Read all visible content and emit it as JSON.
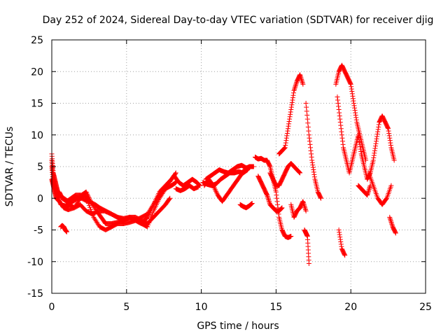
{
  "chart_data": {
    "type": "scatter",
    "title": "Day 252 of 2024, Sidereal Day-to-day VTEC variation (SDTVAR) for receiver djig",
    "xlabel": "GPS time / hours",
    "ylabel": "SDTVAR / TECUs",
    "xlim": [
      0,
      25
    ],
    "ylim": [
      -15,
      25
    ],
    "x_ticks": [
      0,
      5,
      10,
      15,
      20,
      25
    ],
    "y_ticks": [
      -15,
      -10,
      -5,
      0,
      5,
      10,
      15,
      20,
      25
    ],
    "x_tick_labels": [
      "0",
      "5",
      "10",
      "15",
      "20",
      "25"
    ],
    "y_tick_labels": [
      "-15",
      "-10",
      "-5",
      "0",
      "5",
      "10",
      "15",
      "20",
      "25"
    ],
    "grid": true,
    "marker": "+",
    "color": "#ff0000",
    "series": [
      {
        "name": "t0",
        "x": [
          0.0,
          0.1,
          0.2,
          0.3,
          0.4,
          0.5,
          0.7,
          1.0,
          1.3,
          1.6,
          2.0,
          2.3,
          2.6,
          3.0,
          3.3,
          3.6,
          4.0,
          4.4,
          4.8,
          5.2,
          5.6,
          6.0,
          6.4,
          6.8,
          7.2,
          7.6,
          7.9
        ],
        "y": [
          7,
          4,
          3,
          2,
          1,
          1,
          0,
          -0.5,
          0,
          0.5,
          0.5,
          1,
          -0.5,
          -2,
          -3,
          -4,
          -4,
          -3.8,
          -3.5,
          -3,
          -3,
          -3.5,
          -4,
          -3,
          -2,
          -1,
          0
        ]
      },
      {
        "name": "t1",
        "x": [
          0.0,
          0.1,
          0.2,
          0.3,
          0.5,
          0.8,
          1.1,
          1.4,
          1.7,
          2.0,
          2.4,
          2.8,
          3.2,
          3.6,
          4.0,
          4.4,
          4.8,
          5.2,
          5.6,
          6.0,
          6.4,
          6.8,
          7.2,
          7.6,
          8.0
        ],
        "y": [
          6,
          3,
          2,
          1,
          0.5,
          0,
          -0.5,
          -0.5,
          0,
          0,
          -0.5,
          -3,
          -4.5,
          -5,
          -4.5,
          -4,
          -4,
          -3.8,
          -3.5,
          -4,
          -4.5,
          -2,
          0,
          1.5,
          3
        ]
      },
      {
        "name": "t2",
        "x": [
          0.0,
          0.1,
          0.2,
          0.4,
          0.6,
          0.9,
          1.2,
          1.5,
          1.9,
          2.2,
          2.5,
          2.9,
          3.2,
          3.6,
          4.0,
          4.4,
          4.8,
          5.2,
          5.6,
          6.0,
          6.4,
          6.8,
          7.2,
          7.6,
          8.0,
          8.3
        ],
        "y": [
          5,
          2.5,
          1.5,
          0.5,
          -1,
          -1.2,
          -1,
          -1.5,
          0,
          0.5,
          -0.5,
          -1,
          -1.5,
          -2,
          -2.5,
          -3,
          -3.2,
          -3,
          -3.5,
          -4,
          -3,
          -1,
          1,
          2,
          3,
          4
        ]
      },
      {
        "name": "t3",
        "x": [
          0.0,
          0.1,
          0.2,
          0.3,
          0.5,
          0.8,
          1.1,
          1.5,
          1.9,
          2.3,
          2.7,
          3.1,
          3.5,
          4.0,
          4.4,
          4.8,
          5.2,
          5.6,
          6.0,
          6.4,
          6.8,
          7.2,
          7.6,
          8.0,
          8.3
        ],
        "y": [
          3,
          2,
          1,
          0,
          -0.5,
          -1.5,
          -1.8,
          -1.5,
          -1,
          -2,
          -2.5,
          -2,
          -2,
          -2.5,
          -3,
          -3.5,
          -3,
          -3.5,
          -3,
          -2.5,
          -1,
          0.5,
          1.5,
          2,
          2.5
        ]
      },
      {
        "name": "t4",
        "x": [
          0.6,
          0.7,
          0.8,
          0.9,
          1.0
        ],
        "y": [
          -4.5,
          -4.3,
          -4.5,
          -5,
          -5.3
        ]
      },
      {
        "name": "t5",
        "x": [
          8.2,
          8.5,
          8.8,
          9.1,
          9.4,
          9.7,
          9.9
        ],
        "y": [
          3.5,
          2.5,
          2,
          2.5,
          3,
          2.5,
          2
        ]
      },
      {
        "name": "t6",
        "x": [
          8.3,
          8.6,
          8.9,
          9.2,
          9.5,
          9.8
        ],
        "y": [
          1.5,
          1.2,
          1.5,
          2,
          1.5,
          1.8
        ]
      },
      {
        "name": "t7",
        "x": [
          10.2,
          10.5,
          10.8,
          11.1,
          11.4,
          11.7,
          12.0,
          12.3,
          12.6,
          12.9,
          13.2,
          13.5
        ],
        "y": [
          2,
          3,
          2,
          0.5,
          -0.5,
          0.5,
          1.5,
          2.5,
          3.5,
          4.5,
          5,
          5
        ]
      },
      {
        "name": "t8",
        "x": [
          10.3,
          10.6,
          10.9,
          11.2,
          11.5,
          11.8,
          12.1,
          12.4,
          12.7,
          13.0,
          13.3
        ],
        "y": [
          3,
          3.5,
          4,
          4.5,
          4.2,
          4,
          4.5,
          5,
          5.2,
          4.8,
          5
        ]
      },
      {
        "name": "t9",
        "x": [
          10.1,
          10.4,
          10.7,
          11.0,
          11.3,
          11.6,
          11.9,
          12.2,
          12.5,
          12.8,
          13.1
        ],
        "y": [
          2.5,
          2.2,
          2,
          2.3,
          3,
          3.5,
          4,
          4,
          4.2,
          4,
          4.5
        ]
      },
      {
        "name": "t10",
        "x": [
          12.6,
          12.8,
          13.0,
          13.2,
          13.4
        ],
        "y": [
          -1,
          -1.3,
          -1.5,
          -1.2,
          -0.8
        ]
      },
      {
        "name": "t11",
        "x": [
          13.6,
          13.8,
          14.0,
          14.2,
          14.4,
          14.6,
          14.8,
          15.0,
          15.2,
          15.4,
          15.6,
          15.8,
          16.0
        ],
        "y": [
          6.5,
          6.2,
          6.3,
          6,
          6,
          5,
          3,
          1,
          -3,
          -5,
          -6,
          -6.2,
          -6
        ]
      },
      {
        "name": "t12",
        "x": [
          13.8,
          14.0,
          14.2,
          14.4,
          14.6,
          14.8,
          15.0,
          15.2,
          15.4
        ],
        "y": [
          3.5,
          2.5,
          1.5,
          0.5,
          -1,
          -1.5,
          -2,
          -2,
          -1.5
        ]
      },
      {
        "name": "t13",
        "x": [
          14.6,
          14.8,
          15.0,
          15.2,
          15.4,
          15.6,
          15.8,
          16.0,
          16.2,
          16.4,
          16.6
        ],
        "y": [
          4,
          3,
          2,
          2,
          3,
          4,
          5,
          5.5,
          5,
          4.5,
          4
        ]
      },
      {
        "name": "t14",
        "x": [
          15.2,
          15.4,
          15.6,
          15.8,
          16.0,
          16.2,
          16.4,
          16.6,
          16.8
        ],
        "y": [
          7,
          7.5,
          8,
          11,
          14,
          17,
          18.5,
          19.5,
          18
        ]
      },
      {
        "name": "t15",
        "x": [
          16.0,
          16.2,
          16.4,
          16.6,
          16.8,
          17.0
        ],
        "y": [
          -1,
          -3,
          -2,
          -1.5,
          -0.5,
          -2
        ]
      },
      {
        "name": "t16",
        "x": [
          16.9,
          17.0,
          17.1,
          17.2
        ],
        "y": [
          -5,
          -5.5,
          -6,
          -10.3
        ]
      },
      {
        "name": "t17",
        "x": [
          17.0,
          17.2,
          17.4,
          17.6,
          17.8,
          18.0
        ],
        "y": [
          15,
          10,
          6,
          3,
          1,
          0
        ]
      },
      {
        "name": "t18",
        "x": [
          19.0,
          19.2,
          19.4,
          19.6,
          19.8,
          20.0,
          20.2,
          20.4,
          20.6,
          20.8,
          21.0
        ],
        "y": [
          18,
          20,
          21,
          20,
          19,
          18,
          15,
          12,
          10,
          8,
          6
        ]
      },
      {
        "name": "t19",
        "x": [
          19.1,
          19.3,
          19.5,
          19.7,
          19.9,
          20.1,
          20.3,
          20.5,
          20.7,
          20.9,
          21.1,
          21.3,
          21.5,
          21.7,
          21.9,
          22.1,
          22.3,
          22.5,
          22.7,
          22.9
        ],
        "y": [
          16,
          12,
          8,
          6,
          4,
          6,
          8,
          10,
          7,
          5,
          3,
          4,
          6,
          9,
          12,
          13,
          12,
          11,
          8,
          6
        ]
      },
      {
        "name": "t20",
        "x": [
          19.2,
          19.4,
          19.6
        ],
        "y": [
          -5,
          -8,
          -9
        ]
      },
      {
        "name": "t21",
        "x": [
          20.5,
          20.7,
          20.9,
          21.1,
          21.3
        ],
        "y": [
          2,
          1.5,
          1,
          0.5,
          2
        ]
      },
      {
        "name": "t22",
        "x": [
          21.2,
          21.5,
          21.8,
          22.1,
          22.4,
          22.7
        ],
        "y": [
          4,
          2,
          0,
          -1,
          0,
          2
        ]
      },
      {
        "name": "t23",
        "x": [
          22.6,
          22.8,
          23.0
        ],
        "y": [
          -3,
          -4.5,
          -5.5
        ]
      }
    ]
  }
}
